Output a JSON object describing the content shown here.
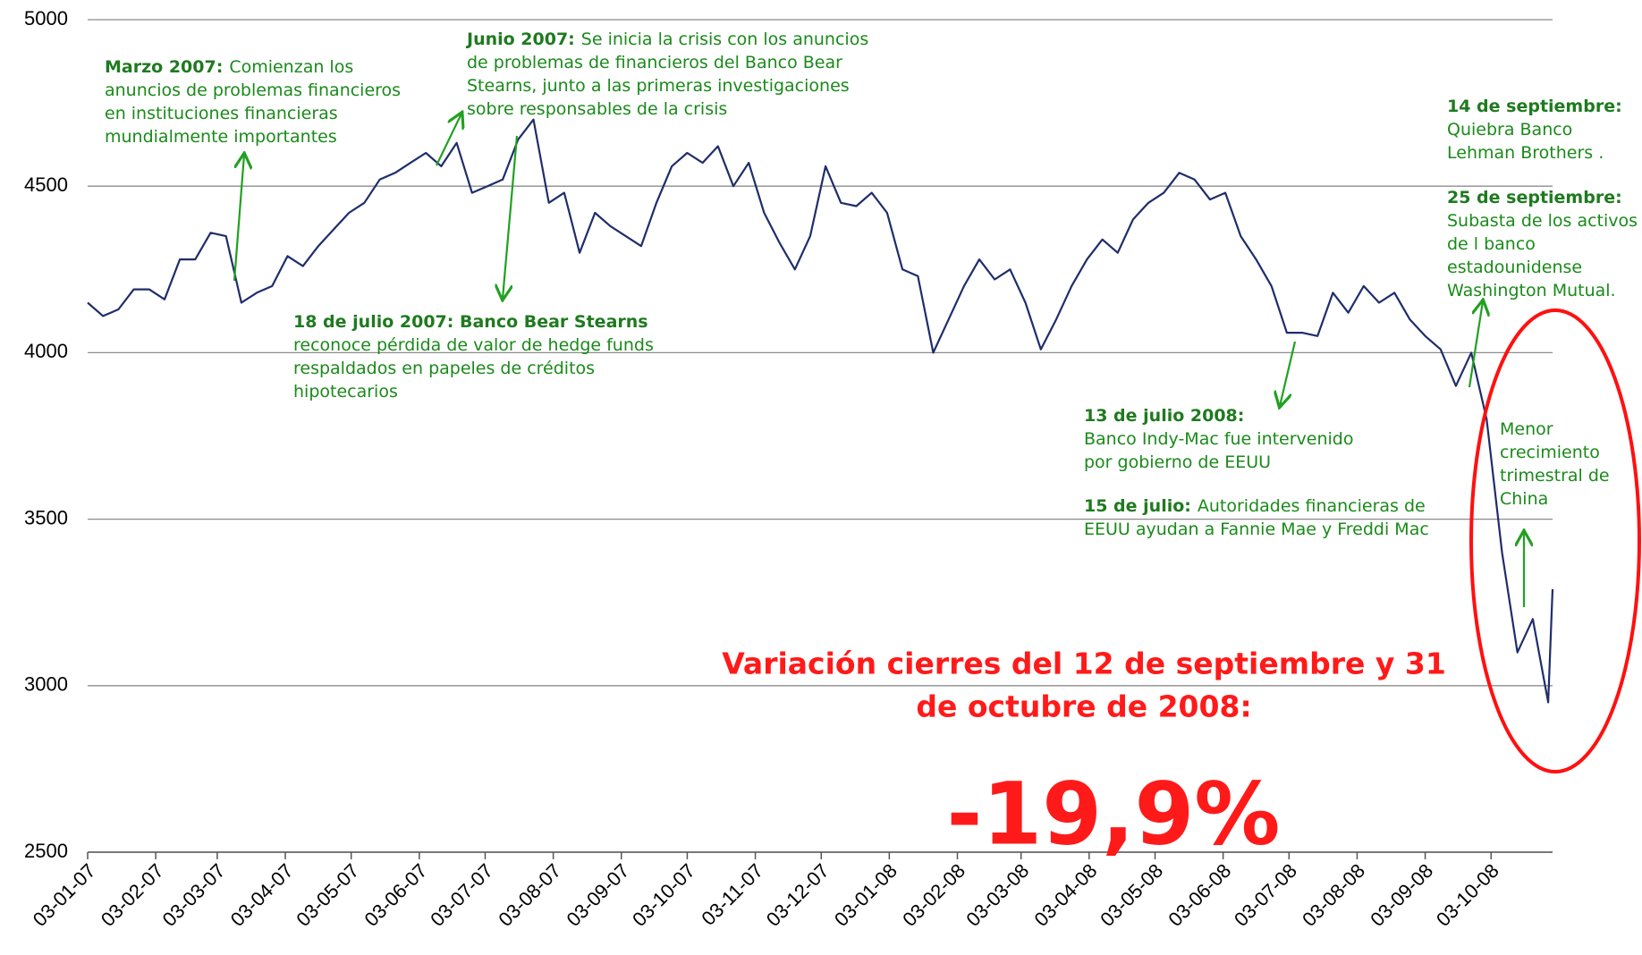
{
  "chart_data": {
    "type": "line",
    "x": [
      "2007-01-03",
      "2007-01-10",
      "2007-01-17",
      "2007-01-24",
      "2007-01-31",
      "2007-02-07",
      "2007-02-14",
      "2007-02-21",
      "2007-02-28",
      "2007-03-07",
      "2007-03-14",
      "2007-03-21",
      "2007-03-28",
      "2007-04-04",
      "2007-04-11",
      "2007-04-18",
      "2007-04-25",
      "2007-05-02",
      "2007-05-09",
      "2007-05-16",
      "2007-05-23",
      "2007-05-30",
      "2007-06-06",
      "2007-06-13",
      "2007-06-20",
      "2007-06-27",
      "2007-07-04",
      "2007-07-11",
      "2007-07-18",
      "2007-07-25",
      "2007-08-01",
      "2007-08-08",
      "2007-08-15",
      "2007-08-22",
      "2007-08-29",
      "2007-09-05",
      "2007-09-12",
      "2007-09-19",
      "2007-09-26",
      "2007-10-03",
      "2007-10-10",
      "2007-10-17",
      "2007-10-24",
      "2007-10-31",
      "2007-11-07",
      "2007-11-14",
      "2007-11-21",
      "2007-11-28",
      "2007-12-05",
      "2007-12-12",
      "2007-12-19",
      "2007-12-26",
      "2008-01-02",
      "2008-01-09",
      "2008-01-16",
      "2008-01-23",
      "2008-01-30",
      "2008-02-06",
      "2008-02-13",
      "2008-02-20",
      "2008-02-27",
      "2008-03-05",
      "2008-03-12",
      "2008-03-19",
      "2008-03-26",
      "2008-04-02",
      "2008-04-09",
      "2008-04-16",
      "2008-04-23",
      "2008-04-30",
      "2008-05-07",
      "2008-05-14",
      "2008-05-21",
      "2008-05-28",
      "2008-06-04",
      "2008-06-11",
      "2008-06-18",
      "2008-06-25",
      "2008-07-02",
      "2008-07-09",
      "2008-07-16",
      "2008-07-23",
      "2008-07-30",
      "2008-08-06",
      "2008-08-13",
      "2008-08-20",
      "2008-08-27",
      "2008-09-03",
      "2008-09-10",
      "2008-09-17",
      "2008-09-24",
      "2008-10-01",
      "2008-10-08",
      "2008-10-15",
      "2008-10-22",
      "2008-10-29",
      "2008-10-31"
    ],
    "series": [
      {
        "color": "#1f2d6b",
        "values": [
          4150,
          4110,
          4130,
          4190,
          4190,
          4160,
          4280,
          4280,
          4360,
          4350,
          4150,
          4180,
          4200,
          4290,
          4260,
          4320,
          4370,
          4420,
          4450,
          4520,
          4540,
          4570,
          4600,
          4560,
          4630,
          4480,
          4500,
          4520,
          4640,
          4700,
          4450,
          4480,
          4300,
          4420,
          4380,
          4350,
          4320,
          4450,
          4560,
          4600,
          4570,
          4620,
          4500,
          4570,
          4420,
          4330,
          4250,
          4350,
          4560,
          4450,
          4440,
          4480,
          4420,
          4250,
          4230,
          4000,
          4100,
          4200,
          4280,
          4220,
          4250,
          4150,
          4010,
          4100,
          4200,
          4280,
          4340,
          4300,
          4400,
          4450,
          4480,
          4540,
          4520,
          4460,
          4480,
          4350,
          4280,
          4200,
          4060,
          4060,
          4050,
          4180,
          4120,
          4200,
          4150,
          4180,
          4100,
          4050,
          4010,
          3900,
          4000,
          3800,
          3400,
          3100,
          3200,
          2950,
          3290
        ]
      }
    ],
    "xlim": [
      "2007-01-03",
      "2008-10-31"
    ],
    "xticks": [
      {
        "value": "2007-01-03",
        "label": "03-01-07"
      },
      {
        "value": "2007-02-03",
        "label": "03-02-07"
      },
      {
        "value": "2007-03-03",
        "label": "03-03-07"
      },
      {
        "value": "2007-04-03",
        "label": "03-04-07"
      },
      {
        "value": "2007-05-03",
        "label": "03-05-07"
      },
      {
        "value": "2007-06-03",
        "label": "03-06-07"
      },
      {
        "value": "2007-07-03",
        "label": "03-07-07"
      },
      {
        "value": "2007-08-03",
        "label": "03-08-07"
      },
      {
        "value": "2007-09-03",
        "label": "03-09-07"
      },
      {
        "value": "2007-10-03",
        "label": "03-10-07"
      },
      {
        "value": "2007-11-03",
        "label": "03-11-07"
      },
      {
        "value": "2007-12-03",
        "label": "03-12-07"
      },
      {
        "value": "2008-01-03",
        "label": "03-01-08"
      },
      {
        "value": "2008-02-03",
        "label": "03-02-08"
      },
      {
        "value": "2008-03-03",
        "label": "03-03-08"
      },
      {
        "value": "2008-04-03",
        "label": "03-04-08"
      },
      {
        "value": "2008-05-03",
        "label": "03-05-08"
      },
      {
        "value": "2008-06-03",
        "label": "03-06-08"
      },
      {
        "value": "2008-07-03",
        "label": "03-07-08"
      },
      {
        "value": "2008-08-03",
        "label": "03-08-08"
      },
      {
        "value": "2008-09-03",
        "label": "03-09-08"
      },
      {
        "value": "2008-10-03",
        "label": "03-10-08"
      }
    ],
    "ylim": [
      2500,
      5000
    ],
    "yticks": [
      2500,
      3000,
      3500,
      4000,
      4500,
      5000
    ],
    "grid": true,
    "annotations": [
      {
        "head": "Marzo 2007:",
        "lines": [
          "Comienzan los",
          "anuncios de problemas financieros",
          "en instituciones financieras",
          "mundialmente importantes"
        ]
      },
      {
        "head": "Junio 2007:",
        "lines": [
          "Se inicia la crisis con  los anuncios",
          "de problemas de financieros del Banco Bear",
          "Stearns, junto a las primeras investigaciones",
          "sobre responsables de la crisis"
        ]
      },
      {
        "head": "18 de julio 2007: Banco Bear Stearns",
        "lines": [
          "reconoce pérdida de valor de hedge funds",
          "respaldados en papeles de créditos",
          "hipotecarios"
        ]
      },
      {
        "head": "13 de julio 2008:",
        "lines": [
          "Banco Indy-Mac  fue intervenido",
          "por gobierno de EEUU"
        ]
      },
      {
        "head": "15 de julio:",
        "lines": [
          "Autoridades financieras de",
          "EEUU ayudan a Fannie Mae y  Freddi Mac"
        ]
      },
      {
        "head": "14 de septiembre:",
        "lines": [
          "Quiebra Banco",
          "Lehman Brothers ."
        ]
      },
      {
        "head": "25 de septiembre:",
        "lines": [
          "Subasta de los activos",
          "de l banco",
          "estadounidense",
          "Washington Mutual."
        ]
      },
      {
        "lines": [
          "Menor",
          "crecimiento",
          "trimestral de",
          "China"
        ]
      }
    ],
    "callout": {
      "lines": [
        "Variación cierres del 12 de septiembre y 31",
        "de octubre de 2008:"
      ],
      "value": "-19,9%"
    }
  }
}
